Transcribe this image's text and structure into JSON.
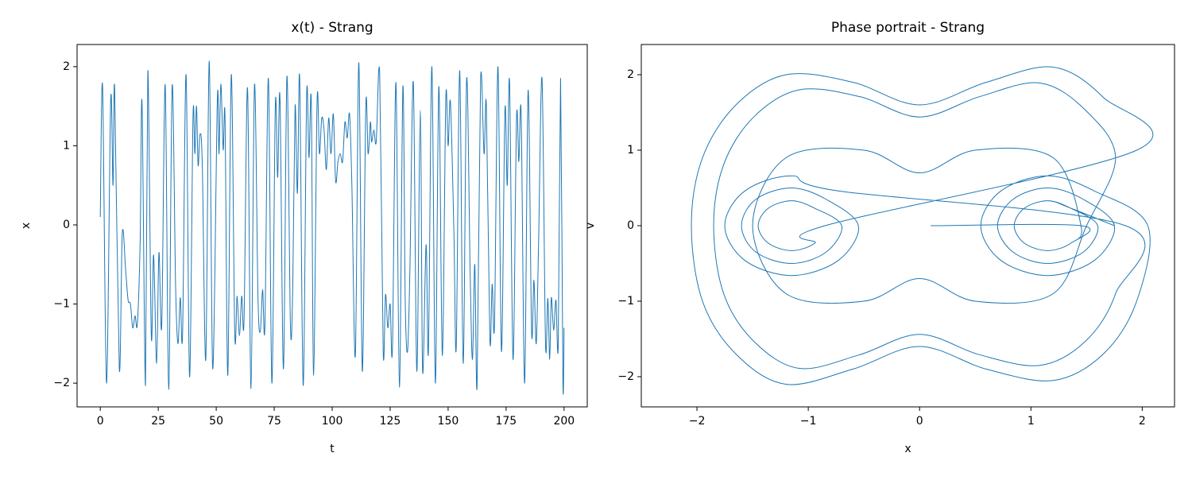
{
  "chart_data": [
    {
      "type": "line",
      "title": "x(t) - Strang",
      "x_label": "t",
      "y_label": "x",
      "color": "#1f77b4",
      "x": [
        0,
        1,
        2.7,
        4.5,
        5.5,
        6.2,
        8.2,
        9.5,
        11,
        12,
        13,
        14,
        15,
        16,
        17.2,
        18,
        19.5,
        20.5,
        22,
        23,
        24.3,
        25.3,
        26.5,
        28,
        29.5,
        31,
        32.5,
        33.5,
        34.5,
        35.5,
        37,
        38.5,
        40,
        40.8,
        41.5,
        42.2,
        43,
        44,
        45.5,
        47,
        48.5,
        50.5,
        51.2,
        52,
        53,
        53.8,
        55,
        56.5,
        58,
        59,
        60,
        61,
        62,
        63.5,
        65,
        66.5,
        68,
        69,
        70,
        71,
        72.5,
        74,
        75.5,
        76.5,
        77.5,
        79,
        80.5,
        82,
        83,
        84,
        85,
        86,
        87.5,
        89,
        90,
        91,
        92,
        93.5,
        94.5,
        95.5,
        96.5,
        97.5,
        98.5,
        99.5,
        100.5,
        101.5,
        102.5,
        103.5,
        104.5,
        105.5,
        106.5,
        107.5,
        108.5,
        110,
        111.5,
        113,
        114.5,
        115.5,
        116.5,
        117,
        118,
        119,
        120.5,
        122,
        123,
        124,
        125,
        126,
        127.5,
        129,
        130.5,
        131.5,
        132.5,
        133.5,
        135,
        136.5,
        138,
        139,
        140.5,
        141.5,
        143,
        144.5,
        146,
        147.5,
        149,
        150,
        151,
        152.5,
        153.5,
        155,
        156.5,
        158,
        159.5,
        160.5,
        161.5,
        162.5,
        164,
        165.5,
        166.5,
        168,
        169,
        170,
        171.5,
        173,
        174.5,
        175.5,
        176.5,
        178,
        179.5,
        180.5,
        181.5,
        183,
        184.5,
        186,
        187,
        188,
        189,
        190.5,
        192,
        193,
        193.8,
        194.5,
        195.5,
        196.5,
        197.5,
        198.5,
        199.5,
        200
      ],
      "values": [
        0.1,
        1.75,
        -2.0,
        1.58,
        0.5,
        1.72,
        -1.82,
        -0.1,
        -0.6,
        -0.95,
        -1.0,
        -1.3,
        -1.15,
        -1.25,
        -0.2,
        1.55,
        -2.03,
        1.95,
        -1.4,
        -0.38,
        -1.75,
        -0.35,
        -1.27,
        1.77,
        -2.08,
        1.76,
        -0.8,
        -1.5,
        -0.92,
        -1.37,
        1.9,
        -1.92,
        1.38,
        0.9,
        1.5,
        0.75,
        1.15,
        0.75,
        -1.7,
        2.07,
        -1.82,
        1.6,
        0.9,
        1.78,
        0.95,
        1.35,
        -1.9,
        1.9,
        -1.38,
        -0.9,
        -1.4,
        -0.9,
        -1.2,
        1.73,
        -2.07,
        1.77,
        -0.9,
        -1.35,
        -0.82,
        -1.27,
        1.85,
        -2.0,
        1.53,
        0.6,
        1.6,
        -1.82,
        1.88,
        -1.27,
        -0.8,
        1.5,
        0.4,
        1.85,
        -2.03,
        1.65,
        0.85,
        1.55,
        -1.9,
        1.57,
        0.9,
        1.35,
        1.2,
        0.7,
        1.35,
        0.9,
        1.4,
        0.55,
        0.8,
        0.9,
        0.8,
        1.3,
        1.1,
        1.4,
        0.5,
        -1.65,
        2.05,
        -1.85,
        1.5,
        0.9,
        1.3,
        1.05,
        1.2,
        1.05,
        1.9,
        -1.6,
        -0.88,
        -1.3,
        -1.0,
        -1.55,
        1.8,
        -2.05,
        1.75,
        -0.95,
        -1.6,
        -0.6,
        1.8,
        -1.85,
        1.45,
        -1.85,
        -0.25,
        -1.6,
        2.0,
        -2.0,
        1.75,
        -1.65,
        1.6,
        1.0,
        1.55,
        -0.1,
        -1.55,
        1.95,
        -1.75,
        1.85,
        -0.6,
        -1.7,
        -0.5,
        -2.03,
        1.83,
        0.9,
        1.5,
        -1.45,
        -0.75,
        -1.25,
        2.0,
        -1.6,
        1.45,
        0.5,
        1.8,
        -1.7,
        1.35,
        0.8,
        1.4,
        -2.0,
        1.7,
        -1.35,
        -0.7,
        -1.5,
        -0.25,
        1.85,
        -1.5,
        -0.93,
        -1.7,
        -0.92,
        -1.33,
        -0.95,
        -1.5,
        1.85,
        -2.0,
        -1.3
      ],
      "xlim": [
        -10,
        210
      ],
      "xticks": [
        0,
        25,
        50,
        75,
        100,
        125,
        150,
        175,
        200
      ],
      "ylim": [
        -2.3,
        2.28
      ],
      "yticks": [
        {
          "value": -2,
          "label": "−2"
        },
        {
          "value": -1,
          "label": "−1"
        },
        0,
        1,
        2
      ]
    },
    {
      "type": "line",
      "title": "Phase portrait - Strang",
      "x_label": "x",
      "y_label": "v",
      "color": "#1f77b4",
      "x": [
        0.1,
        1.45,
        1.36,
        1.15,
        0.94,
        0.85,
        0.94,
        1.15,
        1.36,
        1.6,
        1.47,
        1.15,
        0.84,
        0.7,
        0.84,
        1.15,
        1.47,
        1.75,
        1.57,
        1.15,
        0.73,
        0.55,
        0.73,
        1.15,
        1.57,
        2.05,
        1.95,
        1.65,
        1.2,
        0.6,
        0,
        -0.6,
        -1.2,
        -1.65,
        -1.95,
        -2.05,
        -1.95,
        -1.65,
        -1.2,
        -0.6,
        0,
        0.6,
        1.2,
        1.65,
        1.95,
        -0.85,
        -0.94,
        -1.15,
        -1.36,
        -1.45,
        -1.36,
        -1.15,
        -0.94,
        -0.7,
        -0.84,
        -1.15,
        -1.47,
        -1.6,
        -1.47,
        -1.15,
        -0.84,
        -0.55,
        -0.73,
        -1.15,
        -1.57,
        -1.75,
        -1.57,
        -1.15,
        -0.73,
        1.85,
        1.76,
        1.49,
        1.08,
        0.54,
        0,
        -0.54,
        -1.08,
        -1.49,
        -1.76,
        -1.85,
        -1.76,
        -1.49,
        -1.08,
        -0.54,
        0,
        0.54,
        1.08,
        1.49,
        1.76,
        1.5,
        1.2,
        0.5,
        0,
        -0.5,
        -1.2,
        -1.5,
        -1.2,
        -0.5,
        0,
        0.5,
        1.2,
        1.45,
        1.36,
        1.15,
        0.94,
        0.85,
        0.94,
        1.15,
        1.36,
        1.75
      ],
      "values": [
        0,
        0,
        -0.23,
        -0.33,
        -0.23,
        0,
        0.23,
        0.33,
        0.23,
        0,
        -0.35,
        -0.5,
        -0.35,
        0,
        0.35,
        0.5,
        0.35,
        0,
        -0.46,
        -0.66,
        -0.46,
        0,
        0.46,
        0.66,
        0.46,
        0,
        -1.0,
        -1.7,
        -2.05,
        -1.9,
        -1.6,
        -1.9,
        -2.1,
        -1.7,
        -1.0,
        0,
        0.9,
        1.6,
        2.0,
        1.9,
        1.6,
        1.9,
        2.1,
        1.7,
        1.0,
        0,
        -0.23,
        -0.33,
        -0.23,
        0,
        0.23,
        0.33,
        0.23,
        0,
        -0.35,
        -0.5,
        -0.35,
        0,
        0.35,
        0.5,
        0.35,
        0,
        -0.46,
        -0.66,
        -0.46,
        0,
        0.46,
        0.66,
        0.46,
        0,
        -0.9,
        -1.53,
        -1.85,
        -1.71,
        -1.44,
        -1.71,
        -1.89,
        -1.53,
        -0.9,
        0,
        0.81,
        1.44,
        1.8,
        1.71,
        1.44,
        1.71,
        1.89,
        1.53,
        0.9,
        0,
        -0.9,
        -1.0,
        -0.7,
        -1.0,
        -0.9,
        0,
        0.9,
        1.0,
        0.7,
        1.0,
        0.9,
        0,
        -0.23,
        -0.33,
        -0.23,
        0,
        0.23,
        0.33,
        0.23,
        0
      ],
      "xlim": [
        -2.5,
        2.29
      ],
      "xticks": [
        {
          "value": -2,
          "label": "−2"
        },
        {
          "value": -1,
          "label": "−1"
        },
        0,
        1,
        2
      ],
      "ylim": [
        -2.4,
        2.4
      ],
      "yticks": [
        {
          "value": -2,
          "label": "−2"
        },
        {
          "value": -1,
          "label": "−1"
        },
        0,
        1,
        2
      ]
    }
  ]
}
